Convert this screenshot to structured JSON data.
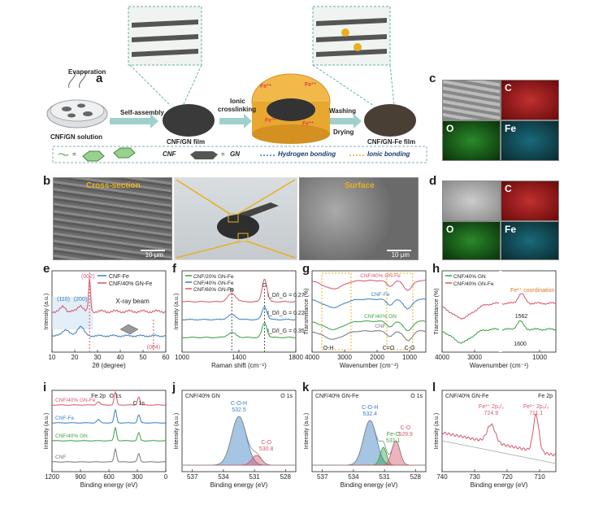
{
  "panels": {
    "a": "a",
    "b": "b",
    "c": "c",
    "d": "d",
    "e": "e",
    "f": "f",
    "g": "g",
    "h": "h",
    "i": "i",
    "j": "j",
    "k": "k",
    "l": "l"
  },
  "a": {
    "evaporation": "Evaporation",
    "self_assembly": "Self-assembly",
    "ionic": "Ionic",
    "crosslinking": "crosslinking",
    "washing": "Washing",
    "drying": "Drying",
    "cnf_gn_solution": "CNF/GN solution",
    "cnf_gn_film": "CNF/GN film",
    "cnf_gn_fe_film": "CNF/GN-Fe film",
    "fe_ion": "Fe³⁺",
    "legend_cnf": "CNF",
    "legend_gn": "GN",
    "legend_hbond": "Hydrogen bonding",
    "legend_ionic": "Ionic bonding",
    "legend_eq": "=",
    "legend_eq2": "="
  },
  "b": {
    "cross_section": "Cross-section",
    "surface": "Surface",
    "scale1": "10 μm",
    "scale2": "10 μm"
  },
  "c": {
    "C": "C",
    "O": "O",
    "Fe": "Fe"
  },
  "d": {
    "C": "C",
    "O": "O",
    "Fe": "Fe"
  },
  "colors": {
    "red": "#d4586c",
    "blue": "#3a7fc0",
    "green": "#3aa046",
    "gray": "#777777",
    "gold": "#e8b020"
  },
  "chart_data": [
    {
      "panel": "e",
      "type": "line",
      "xlabel": "2θ (degree)",
      "ylabel": "Intensity (a.u.)",
      "xlim": [
        10,
        60
      ],
      "x_ticks": [
        10,
        20,
        30,
        40,
        50,
        60
      ],
      "series": [
        {
          "name": "CNF-Fe",
          "color": "#3a7fc0"
        },
        {
          "name": "CNF/40% GN-Fe",
          "color": "#d4586c"
        }
      ],
      "annotations": [
        "(002)",
        "(110)",
        "(200)",
        "(004)",
        "X-ray beam"
      ]
    },
    {
      "panel": "f",
      "type": "line",
      "xlabel": "Raman shift (cm⁻¹)",
      "ylabel": "Intensity (a.u.)",
      "xlim": [
        1000,
        1800
      ],
      "x_ticks": [
        1000,
        1400,
        1800
      ],
      "series": [
        {
          "name": "CNF/20% GN-Fe",
          "color": "#3aa046",
          "ratio": "I_D/I_G = 0.35"
        },
        {
          "name": "CNF/40% GN-Fe",
          "color": "#3a7fc0",
          "ratio": "I_D/I_G = 0.22"
        },
        {
          "name": "CNF/60% GN-Fe",
          "color": "#d4586c",
          "ratio": "I_D/I_G = 0.27"
        }
      ],
      "annotations": [
        "D",
        "G"
      ]
    },
    {
      "panel": "g",
      "type": "line",
      "xlabel": "Wavenumber (cm⁻¹)",
      "ylabel": "Transmittance (%)",
      "xlim": [
        4000,
        500
      ],
      "x_ticks": [
        4000,
        3000,
        2000,
        1000
      ],
      "series": [
        {
          "name": "CNF/40% GN-Fe",
          "color": "#d4586c"
        },
        {
          "name": "CNF-Fe",
          "color": "#3a7fc0"
        },
        {
          "name": "CNF/40% GN",
          "color": "#3aa046"
        },
        {
          "name": "CNF",
          "color": "#777777"
        }
      ],
      "annotations": [
        "O-H",
        "C=O",
        "C-O"
      ]
    },
    {
      "panel": "h",
      "type": "line",
      "xlabel": "Wavenumber (cm⁻¹)",
      "ylabel": "Transmittance (%)",
      "xlim": [
        4000,
        500
      ],
      "x_ticks": [
        4000,
        3000,
        1000
      ],
      "series": [
        {
          "name": "CNF/40% GN",
          "color": "#3aa046"
        },
        {
          "name": "CNF/40% GN-Fe",
          "color": "#d4586c"
        }
      ],
      "annotations": [
        "Fe³⁺ coordination",
        "1562",
        "1600"
      ]
    },
    {
      "panel": "i",
      "type": "line",
      "xlabel": "Binding energy (eV)",
      "ylabel": "Intensity (a.u.)",
      "xlim": [
        1200,
        0
      ],
      "x_ticks": [
        1200,
        900,
        600,
        300,
        0
      ],
      "series": [
        {
          "name": "CNF/40% GN-Fe",
          "color": "#d4586c"
        },
        {
          "name": "CNF-Fe",
          "color": "#3a7fc0"
        },
        {
          "name": "CNF/40% GN",
          "color": "#3aa046"
        },
        {
          "name": "CNF",
          "color": "#777777"
        }
      ],
      "annotations": [
        "Fe 2p",
        "O 1s",
        "C 1s"
      ]
    },
    {
      "panel": "j",
      "type": "line",
      "title": "CNF/40% GN",
      "title_right": "O 1s",
      "xlabel": "Binding energy (eV)",
      "ylabel": "Intensity (a.u.)",
      "xlim": [
        538,
        527
      ],
      "x_ticks": [
        537,
        534,
        531,
        528
      ],
      "peaks": [
        {
          "name": "C-O-H",
          "x": 532.5,
          "color": "#3a7fc0"
        },
        {
          "name": "C-O",
          "x": 530.8,
          "color": "#d4586c"
        }
      ]
    },
    {
      "panel": "k",
      "type": "line",
      "title": "CNF/40% GN-Fe",
      "title_right": "O 1s",
      "xlabel": "Binding energy (eV)",
      "ylabel": "Intensity (a.u.)",
      "xlim": [
        538,
        527
      ],
      "x_ticks": [
        537,
        534,
        531,
        528
      ],
      "peaks": [
        {
          "name": "C-O-H",
          "x": 532.4,
          "color": "#3a7fc0"
        },
        {
          "name": "Fe-O",
          "x": 531.1,
          "color": "#3aa046"
        },
        {
          "name": "C-O",
          "x": 529.9,
          "color": "#d4586c"
        }
      ]
    },
    {
      "panel": "l",
      "type": "line",
      "title": "CNF/40% GN-Fe",
      "title_right": "Fe 2p",
      "xlabel": "Binding energy (eV)",
      "ylabel": "Intensity (a.u.)",
      "xlim": [
        740,
        705
      ],
      "x_ticks": [
        740,
        730,
        720,
        710
      ],
      "peaks": [
        {
          "name": "Fe³⁺ 2p₁/₂",
          "x": 724.9,
          "color": "#d4586c"
        },
        {
          "name": "Fe³⁺ 2p₃/₂",
          "x": 711.1,
          "color": "#d4586c"
        }
      ]
    }
  ]
}
